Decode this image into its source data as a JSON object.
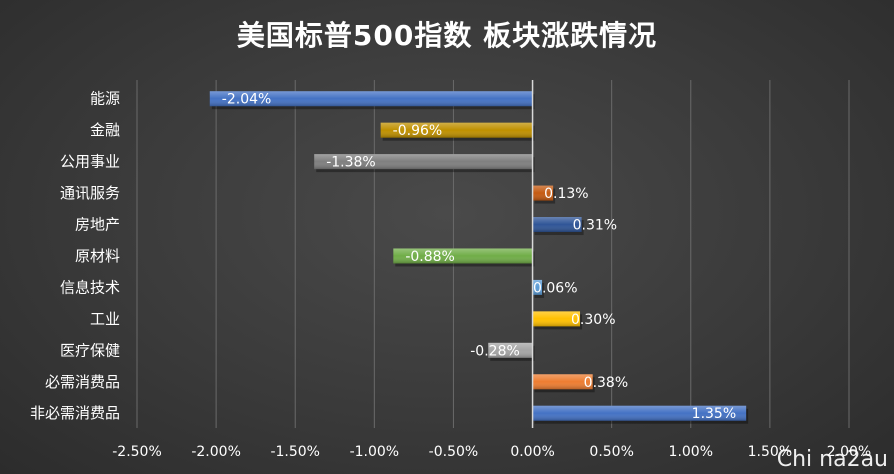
{
  "chart_data": {
    "type": "bar",
    "orientation": "horizontal",
    "title": "美国标普500指数 板块涨跌情况",
    "xlabel": "",
    "ylabel": "",
    "xlim": [
      -2.5,
      2.0
    ],
    "x_ticks": [
      -2.5,
      -2.0,
      -1.5,
      -1.0,
      -0.5,
      0.0,
      0.5,
      1.0,
      1.5,
      2.0
    ],
    "x_tick_labels": [
      "-2.50%",
      "-2.00%",
      "-1.50%",
      "-1.00%",
      "-0.50%",
      "0.00%",
      "0.50%",
      "1.00%",
      "1.50%",
      "2.00%"
    ],
    "grid": "vertical",
    "legend": "none",
    "categories": [
      "能源",
      "金融",
      "公用事业",
      "通讯服务",
      "房地产",
      "原材料",
      "信息技术",
      "工业",
      "医疗保健",
      "必需消费品",
      "非必需消费品"
    ],
    "values": [
      -2.04,
      -0.96,
      -1.38,
      0.13,
      0.31,
      -0.88,
      0.06,
      0.3,
      -0.28,
      0.38,
      1.35
    ],
    "labels": [
      "-2.04%",
      "-0.96%",
      "-1.38%",
      "0.13%",
      "0.31%",
      "-0.88%",
      "0.06%",
      "0.30%",
      "-0.28%",
      "0.38%",
      "1.35%"
    ],
    "colors": [
      "#4472c4",
      "#bf9000",
      "#7f7f7f",
      "#c55a11",
      "#2f5597",
      "#70ad47",
      "#5b9bd5",
      "#ffc000",
      "#a5a5a5",
      "#ed7d31",
      "#4472c4"
    ]
  },
  "watermark": "Chi na2au"
}
